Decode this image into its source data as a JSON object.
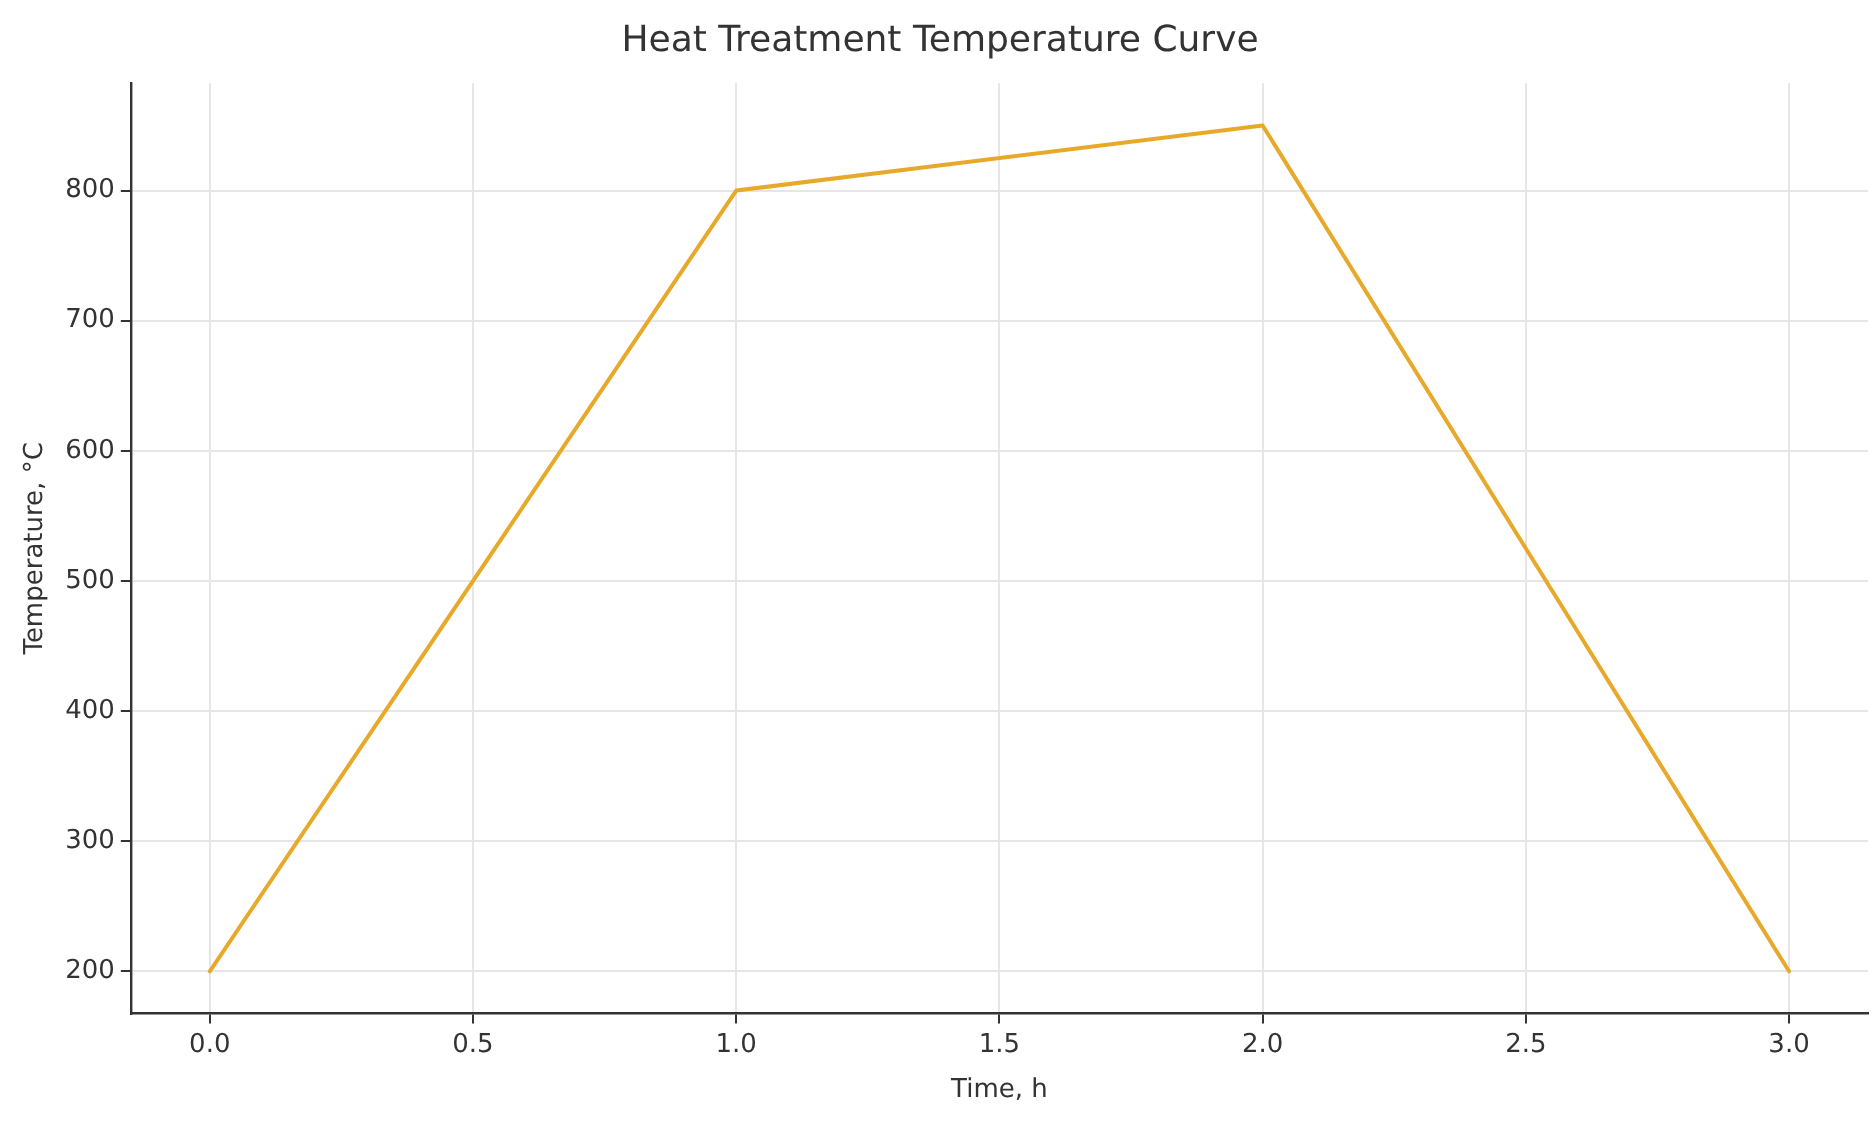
{
  "chart_data": {
    "type": "line",
    "title": "Heat Treatment Temperature Curve",
    "xlabel": "Time, h",
    "ylabel": "Temperature, °C",
    "x": [
      0,
      1,
      2,
      3
    ],
    "series": [
      {
        "color": "#e8a92a",
        "values": [
          200,
          800,
          850,
          200
        ]
      }
    ],
    "xlim": [
      -0.15,
      3.15
    ],
    "xticks": [
      {
        "value": 0,
        "label": "0.0"
      },
      {
        "value": 0.5,
        "label": "0.5"
      },
      {
        "value": 1,
        "label": "1.0"
      },
      {
        "value": 1.5,
        "label": "1.5"
      },
      {
        "value": 2,
        "label": "2.0"
      },
      {
        "value": 2.5,
        "label": "2.5"
      },
      {
        "value": 3,
        "label": "3.0"
      }
    ],
    "ylim": [
      167.5,
      882.5
    ],
    "yticks": [
      200,
      300,
      400,
      500,
      600,
      700,
      800
    ],
    "grid": true,
    "legend": false,
    "marker": "none",
    "line_style": "solid"
  }
}
